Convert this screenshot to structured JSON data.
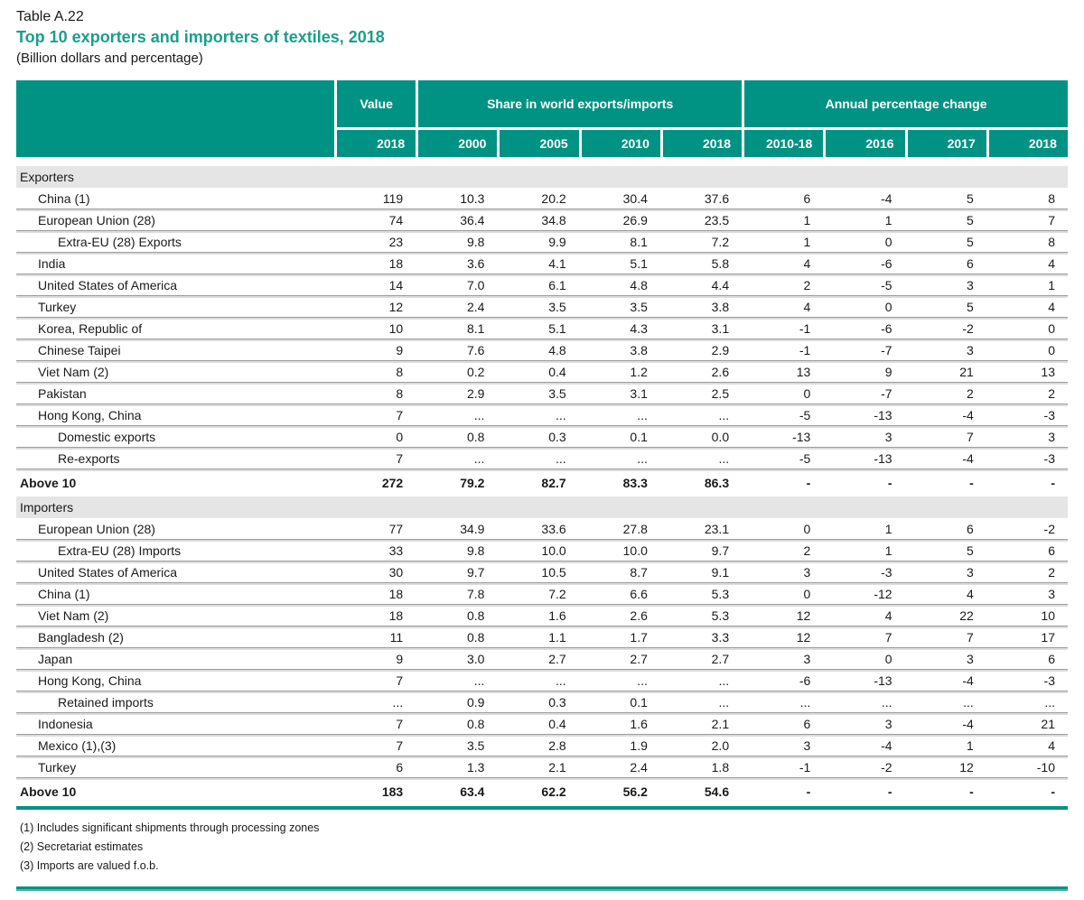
{
  "page": {
    "table_label": "Table A.22",
    "title": "Top 10 exporters and importers of textiles, 2018",
    "subtitle": "(Billion dollars and percentage)"
  },
  "colors": {
    "teal": "#009384",
    "title-teal": "#1b9e8c",
    "band-gray": "#e5e5e5",
    "row-line": "#9c9c9c"
  },
  "header": {
    "value_label": "Value",
    "share_label": "Share in world exports/imports",
    "annual_label": "Annual percentage change",
    "value_year": "2018",
    "share_years": [
      "2000",
      "2005",
      "2010",
      "2018"
    ],
    "annual_years": [
      "2010-18",
      "2016",
      "2017",
      "2018"
    ]
  },
  "table": {
    "sections": [
      {
        "label": "Exporters",
        "rows": [
          {
            "label": "China (1)",
            "indent": 1,
            "values": [
              "119",
              "10.3",
              "20.2",
              "30.4",
              "37.6",
              "6",
              "-4",
              "5",
              "8"
            ]
          },
          {
            "label": "European Union (28)",
            "indent": 1,
            "values": [
              "74",
              "36.4",
              "34.8",
              "26.9",
              "23.5",
              "1",
              "1",
              "5",
              "7"
            ]
          },
          {
            "label": "Extra-EU (28) Exports",
            "indent": 2,
            "values": [
              "23",
              "9.8",
              "9.9",
              "8.1",
              "7.2",
              "1",
              "0",
              "5",
              "8"
            ]
          },
          {
            "label": "India",
            "indent": 1,
            "values": [
              "18",
              "3.6",
              "4.1",
              "5.1",
              "5.8",
              "4",
              "-6",
              "6",
              "4"
            ]
          },
          {
            "label": "United States of America",
            "indent": 1,
            "values": [
              "14",
              "7.0",
              "6.1",
              "4.8",
              "4.4",
              "2",
              "-5",
              "3",
              "1"
            ]
          },
          {
            "label": "Turkey",
            "indent": 1,
            "values": [
              "12",
              "2.4",
              "3.5",
              "3.5",
              "3.8",
              "4",
              "0",
              "5",
              "4"
            ]
          },
          {
            "label": "Korea, Republic of",
            "indent": 1,
            "values": [
              "10",
              "8.1",
              "5.1",
              "4.3",
              "3.1",
              "-1",
              "-6",
              "-2",
              "0"
            ]
          },
          {
            "label": "Chinese Taipei",
            "indent": 1,
            "values": [
              "9",
              "7.6",
              "4.8",
              "3.8",
              "2.9",
              "-1",
              "-7",
              "3",
              "0"
            ]
          },
          {
            "label": "Viet Nam (2)",
            "indent": 1,
            "values": [
              "8",
              "0.2",
              "0.4",
              "1.2",
              "2.6",
              "13",
              "9",
              "21",
              "13"
            ]
          },
          {
            "label": "Pakistan",
            "indent": 1,
            "values": [
              "8",
              "2.9",
              "3.5",
              "3.1",
              "2.5",
              "0",
              "-7",
              "2",
              "2"
            ]
          },
          {
            "label": "Hong Kong, China",
            "indent": 1,
            "values": [
              "7",
              "...",
              "...",
              "...",
              "...",
              "-5",
              "-13",
              "-4",
              "-3"
            ]
          },
          {
            "label": "Domestic exports",
            "indent": 2,
            "values": [
              "0",
              "0.8",
              "0.3",
              "0.1",
              "0.0",
              "-13",
              "3",
              "7",
              "3"
            ]
          },
          {
            "label": "Re-exports",
            "indent": 2,
            "values": [
              "7",
              "...",
              "...",
              "...",
              "...",
              "-5",
              "-13",
              "-4",
              "-3"
            ]
          }
        ],
        "total": {
          "label": "Above 10",
          "values": [
            "272",
            "79.2",
            "82.7",
            "83.3",
            "86.3",
            "-",
            "-",
            "-",
            "-"
          ]
        }
      },
      {
        "label": "Importers",
        "rows": [
          {
            "label": "European Union (28)",
            "indent": 1,
            "values": [
              "77",
              "34.9",
              "33.6",
              "27.8",
              "23.1",
              "0",
              "1",
              "6",
              "-2"
            ]
          },
          {
            "label": "Extra-EU (28) Imports",
            "indent": 2,
            "values": [
              "33",
              "9.8",
              "10.0",
              "10.0",
              "9.7",
              "2",
              "1",
              "5",
              "6"
            ]
          },
          {
            "label": "United States of America",
            "indent": 1,
            "values": [
              "30",
              "9.7",
              "10.5",
              "8.7",
              "9.1",
              "3",
              "-3",
              "3",
              "2"
            ]
          },
          {
            "label": "China (1)",
            "indent": 1,
            "values": [
              "18",
              "7.8",
              "7.2",
              "6.6",
              "5.3",
              "0",
              "-12",
              "4",
              "3"
            ]
          },
          {
            "label": "Viet Nam (2)",
            "indent": 1,
            "values": [
              "18",
              "0.8",
              "1.6",
              "2.6",
              "5.3",
              "12",
              "4",
              "22",
              "10"
            ]
          },
          {
            "label": "Bangladesh (2)",
            "indent": 1,
            "values": [
              "11",
              "0.8",
              "1.1",
              "1.7",
              "3.3",
              "12",
              "7",
              "7",
              "17"
            ]
          },
          {
            "label": "Japan",
            "indent": 1,
            "values": [
              "9",
              "3.0",
              "2.7",
              "2.7",
              "2.7",
              "3",
              "0",
              "3",
              "6"
            ]
          },
          {
            "label": "Hong Kong, China",
            "indent": 1,
            "values": [
              "7",
              "...",
              "...",
              "...",
              "...",
              "-6",
              "-13",
              "-4",
              "-3"
            ]
          },
          {
            "label": "Retained imports",
            "indent": 2,
            "values": [
              "...",
              "0.9",
              "0.3",
              "0.1",
              "...",
              "...",
              "...",
              "...",
              "..."
            ]
          },
          {
            "label": "Indonesia",
            "indent": 1,
            "values": [
              "7",
              "0.8",
              "0.4",
              "1.6",
              "2.1",
              "6",
              "3",
              "-4",
              "21"
            ]
          },
          {
            "label": "Mexico (1),(3)",
            "indent": 1,
            "values": [
              "7",
              "3.5",
              "2.8",
              "1.9",
              "2.0",
              "3",
              "-4",
              "1",
              "4"
            ]
          },
          {
            "label": "Turkey",
            "indent": 1,
            "values": [
              "6",
              "1.3",
              "2.1",
              "2.4",
              "1.8",
              "-1",
              "-2",
              "12",
              "-10"
            ]
          }
        ],
        "total": {
          "label": "Above 10",
          "values": [
            "183",
            "63.4",
            "62.2",
            "56.2",
            "54.6",
            "-",
            "-",
            "-",
            "-"
          ]
        }
      }
    ]
  },
  "footnotes": [
    "(1) Includes significant shipments through processing zones",
    "(2) Secretariat estimates",
    "(3) Imports are valued f.o.b."
  ]
}
